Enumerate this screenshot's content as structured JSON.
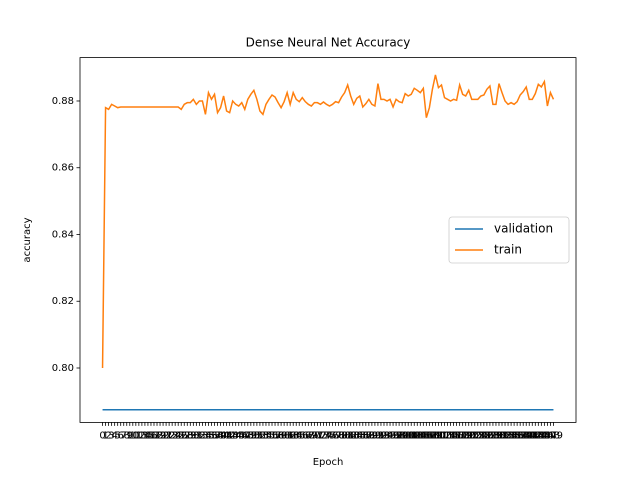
{
  "chart_data": {
    "type": "line",
    "title": "Dense Neural Net Accuracy",
    "x_label": "Epoch",
    "y_label": "accuracy",
    "categories": [
      "0",
      "1",
      "2",
      "3",
      "4",
      "5",
      "6",
      "7",
      "8",
      "9",
      "10",
      "11",
      "12",
      "13",
      "14",
      "15",
      "16",
      "17",
      "18",
      "19",
      "20",
      "21",
      "22",
      "23",
      "24",
      "25",
      "26",
      "27",
      "28",
      "29",
      "30",
      "31",
      "32",
      "33",
      "34",
      "35",
      "36",
      "37",
      "38",
      "39",
      "40",
      "41",
      "42",
      "43",
      "44",
      "45",
      "46",
      "47",
      "48",
      "49",
      "50",
      "51",
      "52",
      "53",
      "54",
      "55",
      "56",
      "57",
      "58",
      "59",
      "60",
      "61",
      "62",
      "63",
      "64",
      "65",
      "66",
      "67",
      "68",
      "69",
      "70",
      "71",
      "72",
      "73",
      "74",
      "75",
      "76",
      "77",
      "78",
      "79",
      "80",
      "81",
      "82",
      "83",
      "84",
      "85",
      "86",
      "87",
      "88",
      "89",
      "90",
      "91",
      "92",
      "93",
      "94",
      "95",
      "96",
      "97",
      "98",
      "99",
      "100",
      "101",
      "102",
      "103",
      "104",
      "105",
      "106",
      "107",
      "108",
      "109",
      "110",
      "111",
      "112",
      "113",
      "114",
      "115",
      "116",
      "117",
      "118",
      "119",
      "120",
      "121",
      "122",
      "123",
      "124",
      "125",
      "126",
      "127",
      "128",
      "129",
      "130",
      "131",
      "132",
      "133",
      "134",
      "135",
      "136",
      "137",
      "138",
      "139",
      "140",
      "141",
      "142",
      "143",
      "144",
      "145",
      "146",
      "147",
      "148",
      "149"
    ],
    "series": [
      {
        "name": "validation",
        "color": "#1f77b4",
        "values": [
          0.7875,
          0.7875,
          0.7875,
          0.7875,
          0.7875,
          0.7875,
          0.7875,
          0.7875,
          0.7875,
          0.7875,
          0.7875,
          0.7875,
          0.7875,
          0.7875,
          0.7875,
          0.7875,
          0.7875,
          0.7875,
          0.7875,
          0.7875,
          0.7875,
          0.7875,
          0.7875,
          0.7875,
          0.7875,
          0.7875,
          0.7875,
          0.7875,
          0.7875,
          0.7875,
          0.7875,
          0.7875,
          0.7875,
          0.7875,
          0.7875,
          0.7875,
          0.7875,
          0.7875,
          0.7875,
          0.7875,
          0.7875,
          0.7875,
          0.7875,
          0.7875,
          0.7875,
          0.7875,
          0.7875,
          0.7875,
          0.7875,
          0.7875,
          0.7875,
          0.7875,
          0.7875,
          0.7875,
          0.7875,
          0.7875,
          0.7875,
          0.7875,
          0.7875,
          0.7875,
          0.7875,
          0.7875,
          0.7875,
          0.7875,
          0.7875,
          0.7875,
          0.7875,
          0.7875,
          0.7875,
          0.7875,
          0.7875,
          0.7875,
          0.7875,
          0.7875,
          0.7875,
          0.7875,
          0.7875,
          0.7875,
          0.7875,
          0.7875,
          0.7875,
          0.7875,
          0.7875,
          0.7875,
          0.7875,
          0.7875,
          0.7875,
          0.7875,
          0.7875,
          0.7875,
          0.7875,
          0.7875,
          0.7875,
          0.7875,
          0.7875,
          0.7875,
          0.7875,
          0.7875,
          0.7875,
          0.7875,
          0.7875,
          0.7875,
          0.7875,
          0.7875,
          0.7875,
          0.7875,
          0.7875,
          0.7875,
          0.7875,
          0.7875,
          0.7875,
          0.7875,
          0.7875,
          0.7875,
          0.7875,
          0.7875,
          0.7875,
          0.7875,
          0.7875,
          0.7875,
          0.7875,
          0.7875,
          0.7875,
          0.7875,
          0.7875,
          0.7875,
          0.7875,
          0.7875,
          0.7875,
          0.7875,
          0.7875,
          0.7875,
          0.7875,
          0.7875,
          0.7875,
          0.7875,
          0.7875,
          0.7875,
          0.7875,
          0.7875,
          0.7875,
          0.7875,
          0.7875,
          0.7875,
          0.7875,
          0.7875,
          0.7875,
          0.7875,
          0.7875,
          0.7875
        ]
      },
      {
        "name": "train",
        "color": "#ff7f0e",
        "values": [
          0.8,
          0.878,
          0.8775,
          0.879,
          0.8785,
          0.878,
          0.8782,
          0.8782,
          0.8782,
          0.8782,
          0.8782,
          0.8782,
          0.8782,
          0.8782,
          0.8782,
          0.8782,
          0.8782,
          0.8782,
          0.8782,
          0.8782,
          0.8782,
          0.8782,
          0.8782,
          0.8782,
          0.8782,
          0.8782,
          0.8775,
          0.879,
          0.8795,
          0.8795,
          0.8805,
          0.879,
          0.88,
          0.88,
          0.876,
          0.8825,
          0.8805,
          0.882,
          0.8765,
          0.878,
          0.8815,
          0.877,
          0.8765,
          0.88,
          0.879,
          0.8785,
          0.8795,
          0.8775,
          0.8805,
          0.882,
          0.8832,
          0.8805,
          0.877,
          0.876,
          0.879,
          0.8805,
          0.8818,
          0.8812,
          0.8795,
          0.878,
          0.8798,
          0.8825,
          0.879,
          0.8825,
          0.8805,
          0.8798,
          0.881,
          0.8798,
          0.879,
          0.8785,
          0.8795,
          0.8795,
          0.879,
          0.8797,
          0.879,
          0.8785,
          0.879,
          0.8798,
          0.8795,
          0.8812,
          0.8825,
          0.8848,
          0.8815,
          0.879,
          0.8808,
          0.8815,
          0.8782,
          0.8792,
          0.8805,
          0.879,
          0.8785,
          0.8852,
          0.8805,
          0.8805,
          0.88,
          0.8805,
          0.8782,
          0.8805,
          0.8798,
          0.8795,
          0.8822,
          0.8815,
          0.882,
          0.8838,
          0.8832,
          0.8825,
          0.8838,
          0.875,
          0.878,
          0.8835,
          0.8878,
          0.884,
          0.8848,
          0.881,
          0.8805,
          0.88,
          0.8805,
          0.8802,
          0.8848,
          0.882,
          0.8815,
          0.8832,
          0.8805,
          0.8805,
          0.8805,
          0.8815,
          0.8818,
          0.8835,
          0.8845,
          0.879,
          0.879,
          0.8852,
          0.8825,
          0.88,
          0.879,
          0.8795,
          0.879,
          0.8798,
          0.8818,
          0.8828,
          0.8842,
          0.8805,
          0.8805,
          0.8822,
          0.885,
          0.8842,
          0.8858,
          0.8785,
          0.8825,
          0.8805
        ]
      }
    ],
    "ylim": [
      0.7837,
      0.893
    ],
    "yticks": [
      {
        "value": 0.8,
        "label": "0.80"
      },
      {
        "value": 0.82,
        "label": "0.82"
      },
      {
        "value": 0.84,
        "label": "0.84"
      },
      {
        "value": 0.86,
        "label": "0.86"
      },
      {
        "value": 0.88,
        "label": "0.88"
      }
    ],
    "legend": "center right"
  }
}
